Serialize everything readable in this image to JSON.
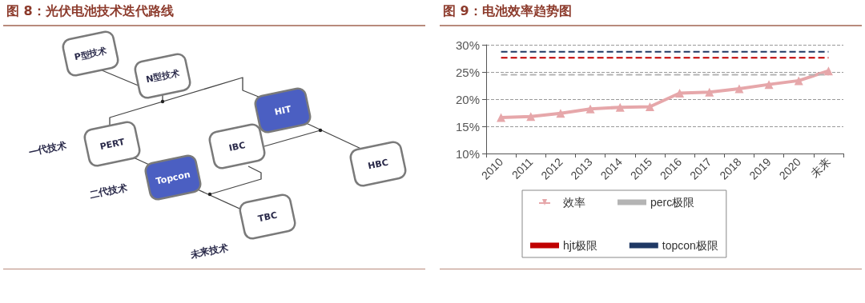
{
  "chart_data": [
    {
      "type": "other",
      "title": "图 8：光伏电池技术迭代路线",
      "annotations": [
        "P型技术",
        "N型技术",
        "HIT",
        "PERT",
        "IBC",
        "HBC",
        "Topcon",
        "TBC",
        "一代技术",
        "二代技术",
        "未来技术"
      ]
    },
    {
      "type": "line",
      "title": "图 9：电池效率趋势图",
      "categories": [
        "2010",
        "2011",
        "2012",
        "2013",
        "2014",
        "2015",
        "2016",
        "2017",
        "2018",
        "2019",
        "2020",
        "未来"
      ],
      "series": [
        {
          "name": "效率",
          "color": "#e6a7aa",
          "values": [
            16.6,
            16.8,
            17.4,
            18.2,
            18.5,
            18.6,
            21.1,
            21.3,
            21.9,
            22.7,
            23.4,
            25.2
          ]
        }
      ],
      "ref_lines": [
        {
          "axis": "y",
          "value": 24.5,
          "label": "perc极限",
          "color": "#b4b4b4",
          "line_style": "dashed"
        },
        {
          "axis": "y",
          "value": 27.6,
          "label": "hjt极限",
          "color": "#c00000",
          "line_style": "dashed"
        },
        {
          "axis": "y",
          "value": 28.7,
          "label": "topcon极限",
          "color": "#1f3864",
          "line_style": "dashed"
        }
      ],
      "ylim": [
        10,
        30
      ],
      "yticks": [
        {
          "value": 10,
          "label": "10%"
        },
        {
          "value": 15,
          "label": "15%"
        },
        {
          "value": 20,
          "label": "20%"
        },
        {
          "value": 25,
          "label": "25%"
        },
        {
          "value": 30,
          "label": "30%"
        }
      ],
      "grid": "y",
      "legend": "bottom",
      "marker": "triangle",
      "line_style": "solid"
    }
  ]
}
